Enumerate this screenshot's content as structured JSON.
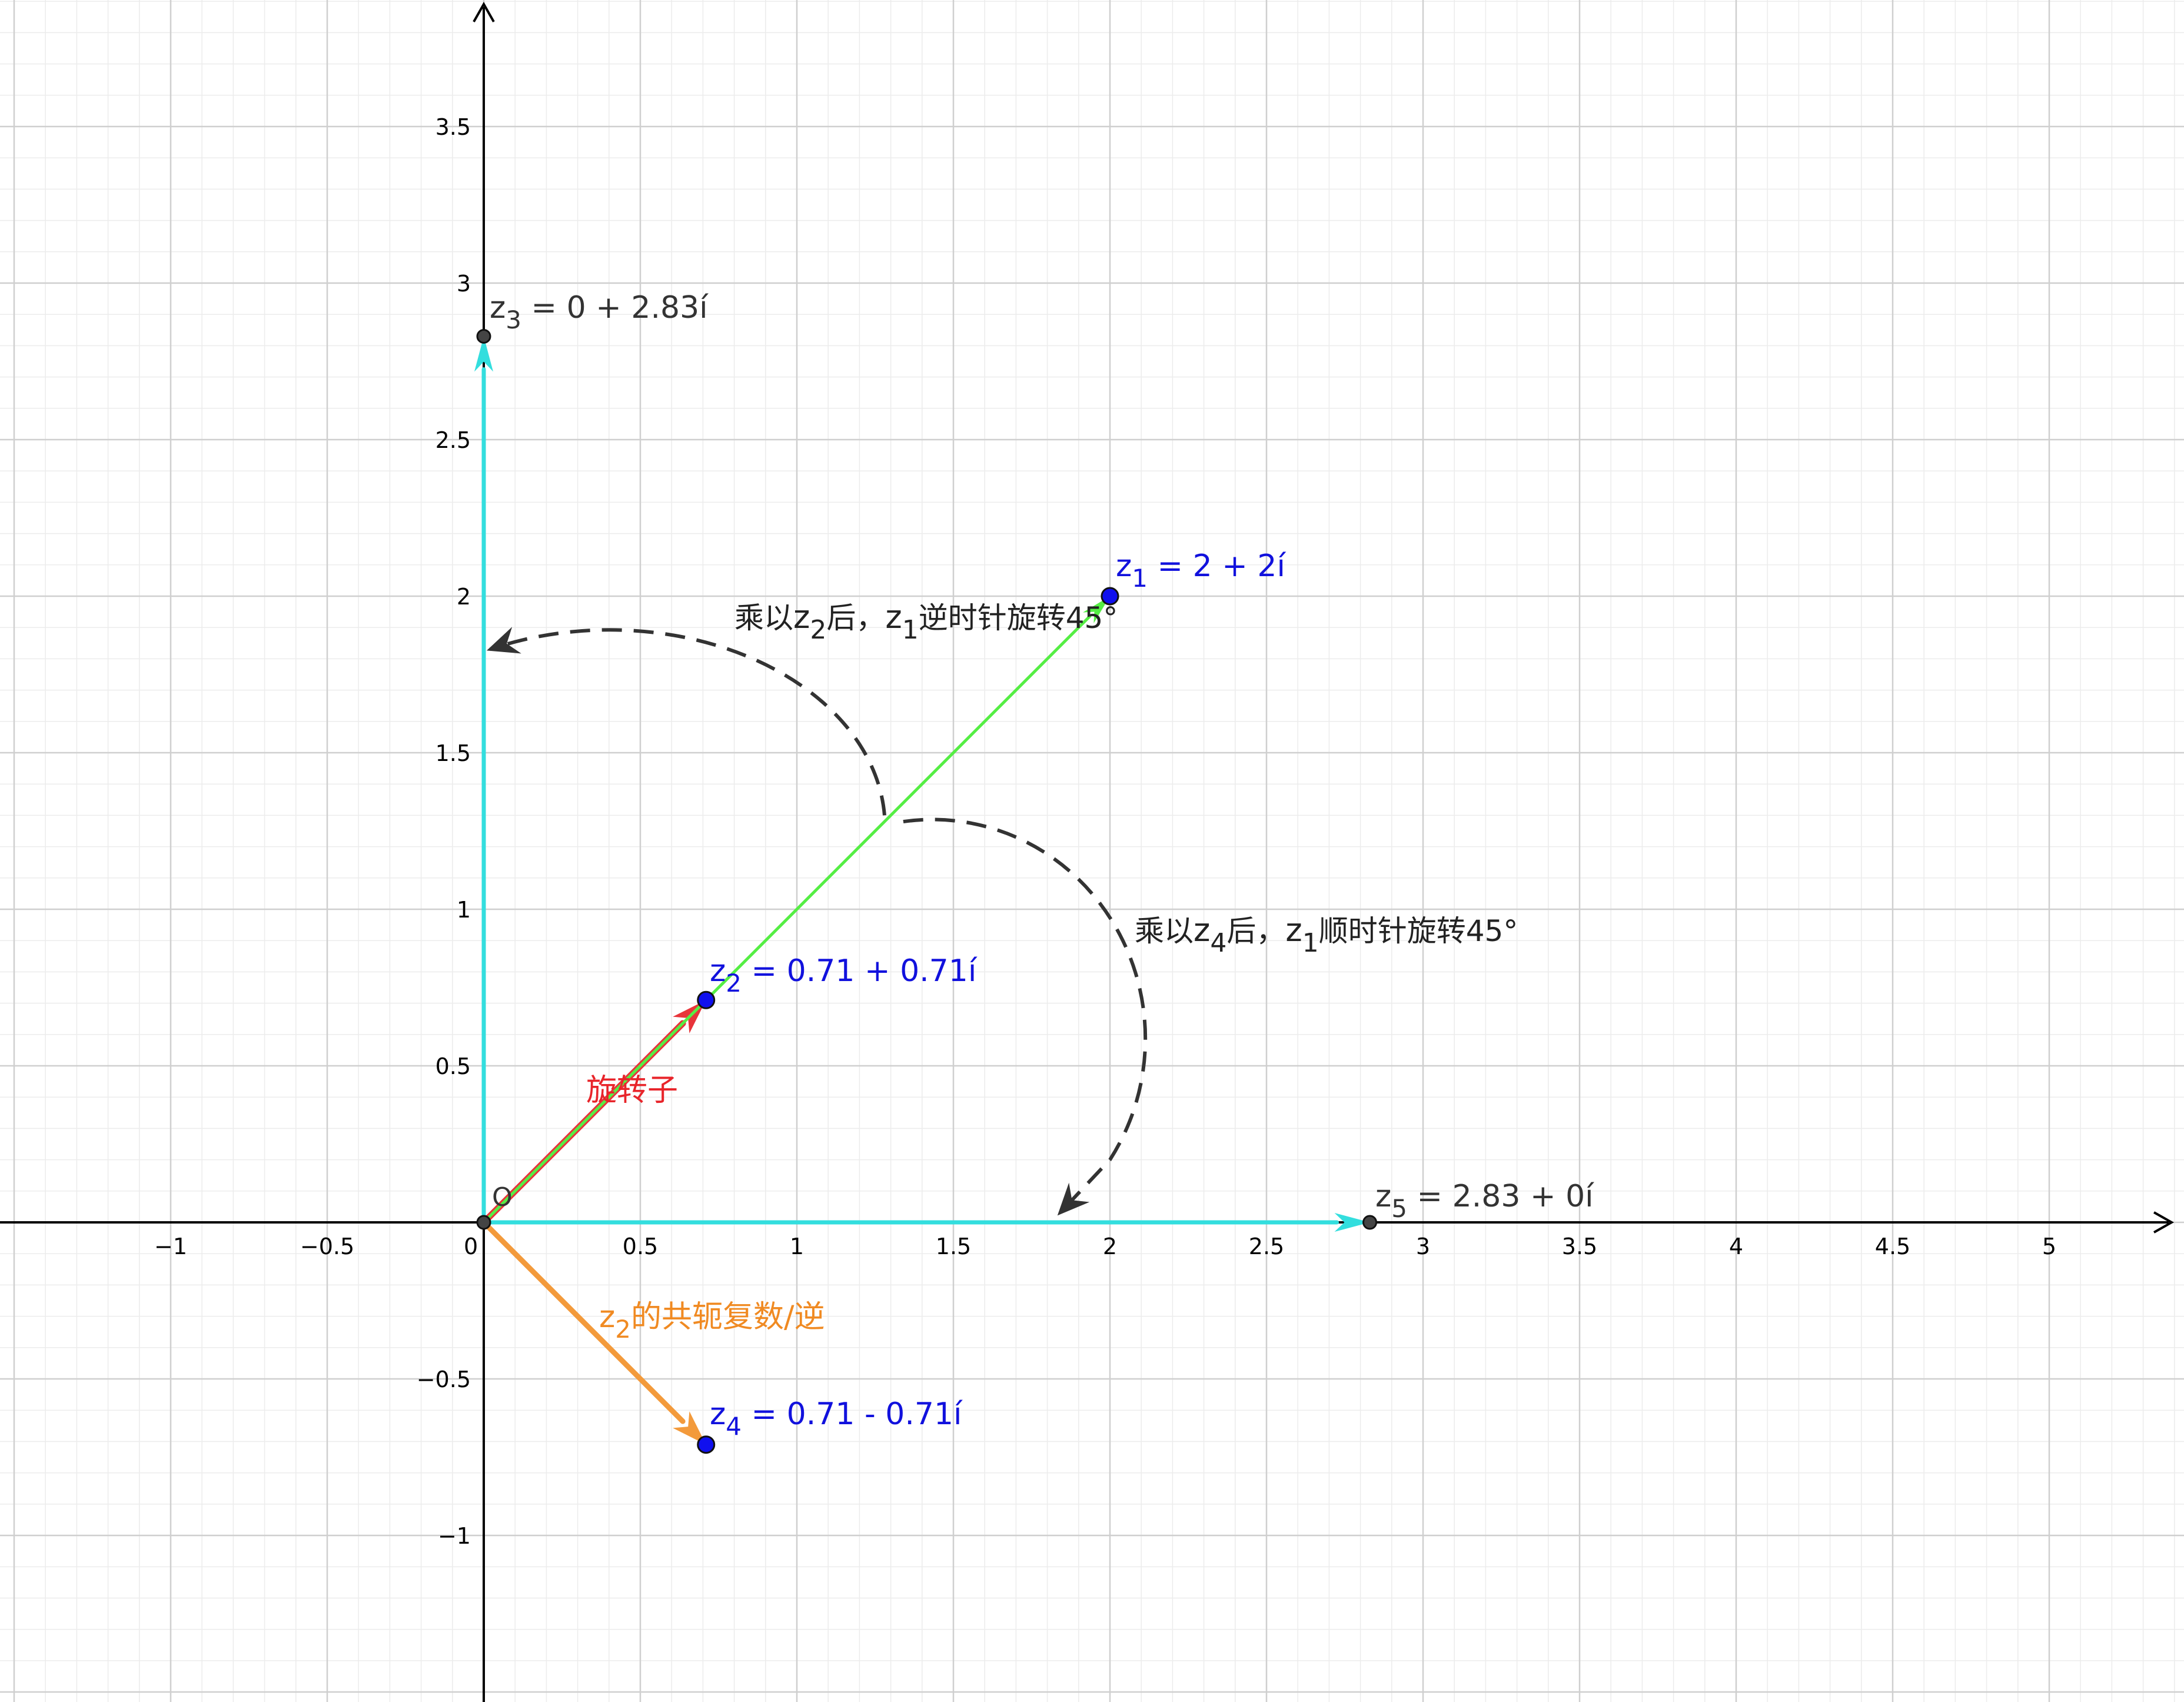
{
  "axes": {
    "x_ticks": [
      {
        "v": -1,
        "t": "−1"
      },
      {
        "v": -0.5,
        "t": "−0.5"
      },
      {
        "v": 0.5,
        "t": "0.5"
      },
      {
        "v": 1,
        "t": "1"
      },
      {
        "v": 1.5,
        "t": "1.5"
      },
      {
        "v": 2,
        "t": "2"
      },
      {
        "v": 2.5,
        "t": "2.5"
      },
      {
        "v": 3,
        "t": "3"
      },
      {
        "v": 3.5,
        "t": "3.5"
      },
      {
        "v": 4,
        "t": "4"
      },
      {
        "v": 4.5,
        "t": "4.5"
      },
      {
        "v": 5,
        "t": "5"
      }
    ],
    "y_ticks": [
      {
        "v": -1,
        "t": "−1"
      },
      {
        "v": -0.5,
        "t": "−0.5"
      },
      {
        "v": 0.5,
        "t": "0.5"
      },
      {
        "v": 1,
        "t": "1"
      },
      {
        "v": 1.5,
        "t": "1.5"
      },
      {
        "v": 2,
        "t": "2"
      },
      {
        "v": 2.5,
        "t": "2.5"
      },
      {
        "v": 3,
        "t": "3"
      },
      {
        "v": 3.5,
        "t": "3.5"
      }
    ],
    "origin_label": "0",
    "x_range": [
      -1.55,
      5.4
    ],
    "y_range": [
      -1.52,
      3.9
    ]
  },
  "colors": {
    "grid_major": "#cfcfcf",
    "grid_minor": "#ececec",
    "cyan": "#33dede",
    "green": "#55ee44",
    "red": "#e8343a",
    "orange": "#f39a3b",
    "blue_point": "#1010ee",
    "dark": "#333333",
    "label_blue": "#1111dd",
    "label_red": "#e8242a",
    "label_orange": "#f08a22"
  },
  "points": {
    "z1": {
      "x": 2,
      "y": 2,
      "name": "z",
      "sub": "1",
      "value": " = 2 + 2í"
    },
    "z2": {
      "x": 0.71,
      "y": 0.71,
      "name": "z",
      "sub": "2",
      "value": " = 0.71 + 0.71í"
    },
    "z3": {
      "x": 0,
      "y": 2.83,
      "name": "z",
      "sub": "3",
      "value": " = 0 + 2.83í"
    },
    "z4": {
      "x": 0.71,
      "y": -0.71,
      "name": "z",
      "sub": "4",
      "value": " = 0.71 - 0.71í"
    },
    "z5": {
      "x": 2.83,
      "y": 0,
      "name": "z",
      "sub": "5",
      "value": " = 2.83 + 0í"
    }
  },
  "labels": {
    "origin_point": "O",
    "rotator": "旋转子",
    "conj_name": "z",
    "conj_sub": "2",
    "conj_rest": "的共轭复数/逆",
    "ccw_a": "乘以",
    "ccw_z": "z",
    "ccw_zsub": "2",
    "ccw_b": "后，",
    "ccw_c": "z",
    "ccw_csub": "1",
    "ccw_d": "逆时针旋转45°",
    "cw_a": "乘以",
    "cw_z": "z",
    "cw_zsub": "4",
    "cw_b": "后，",
    "cw_c": "z",
    "cw_csub": "1",
    "cw_d": "顺时针旋转45°"
  }
}
